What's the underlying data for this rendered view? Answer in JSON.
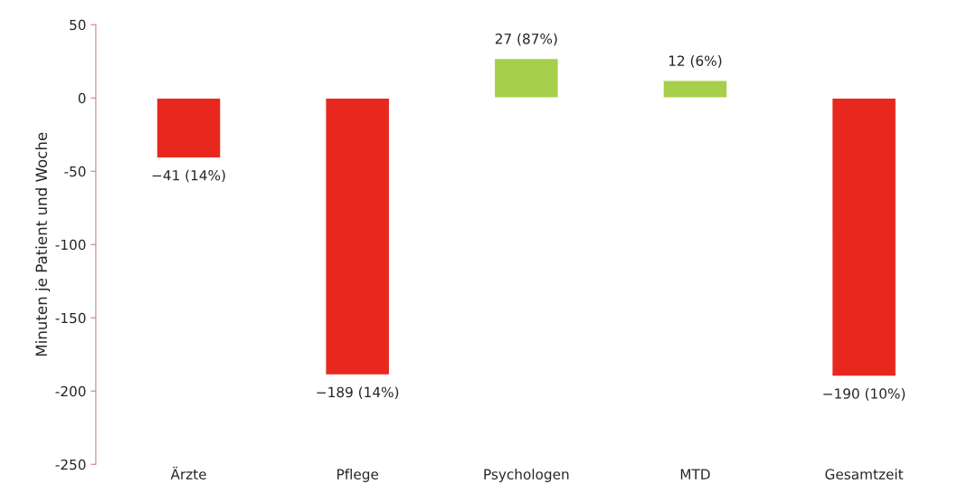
{
  "chart_data": {
    "type": "bar",
    "ylabel": "Minuten je Patient und Woche",
    "categories": [
      "Ärzte",
      "Pflege",
      "Psychologen",
      "MTD",
      "Gesamtzeit"
    ],
    "values": [
      -41,
      -189,
      27,
      12,
      -190
    ],
    "colors": [
      "#e8281e",
      "#e8281e",
      "#a6cf4c",
      "#a6cf4c",
      "#e8281e"
    ],
    "value_labels": [
      "−41 (14%)",
      "−189 (14%)",
      "27 (87%)",
      "12 (6%)",
      "−190 (10%)"
    ],
    "ylim": [
      -250,
      50
    ],
    "yticks": [
      -250,
      -200,
      -150,
      -100,
      -50,
      0,
      50
    ],
    "grid": false,
    "legend": false
  }
}
